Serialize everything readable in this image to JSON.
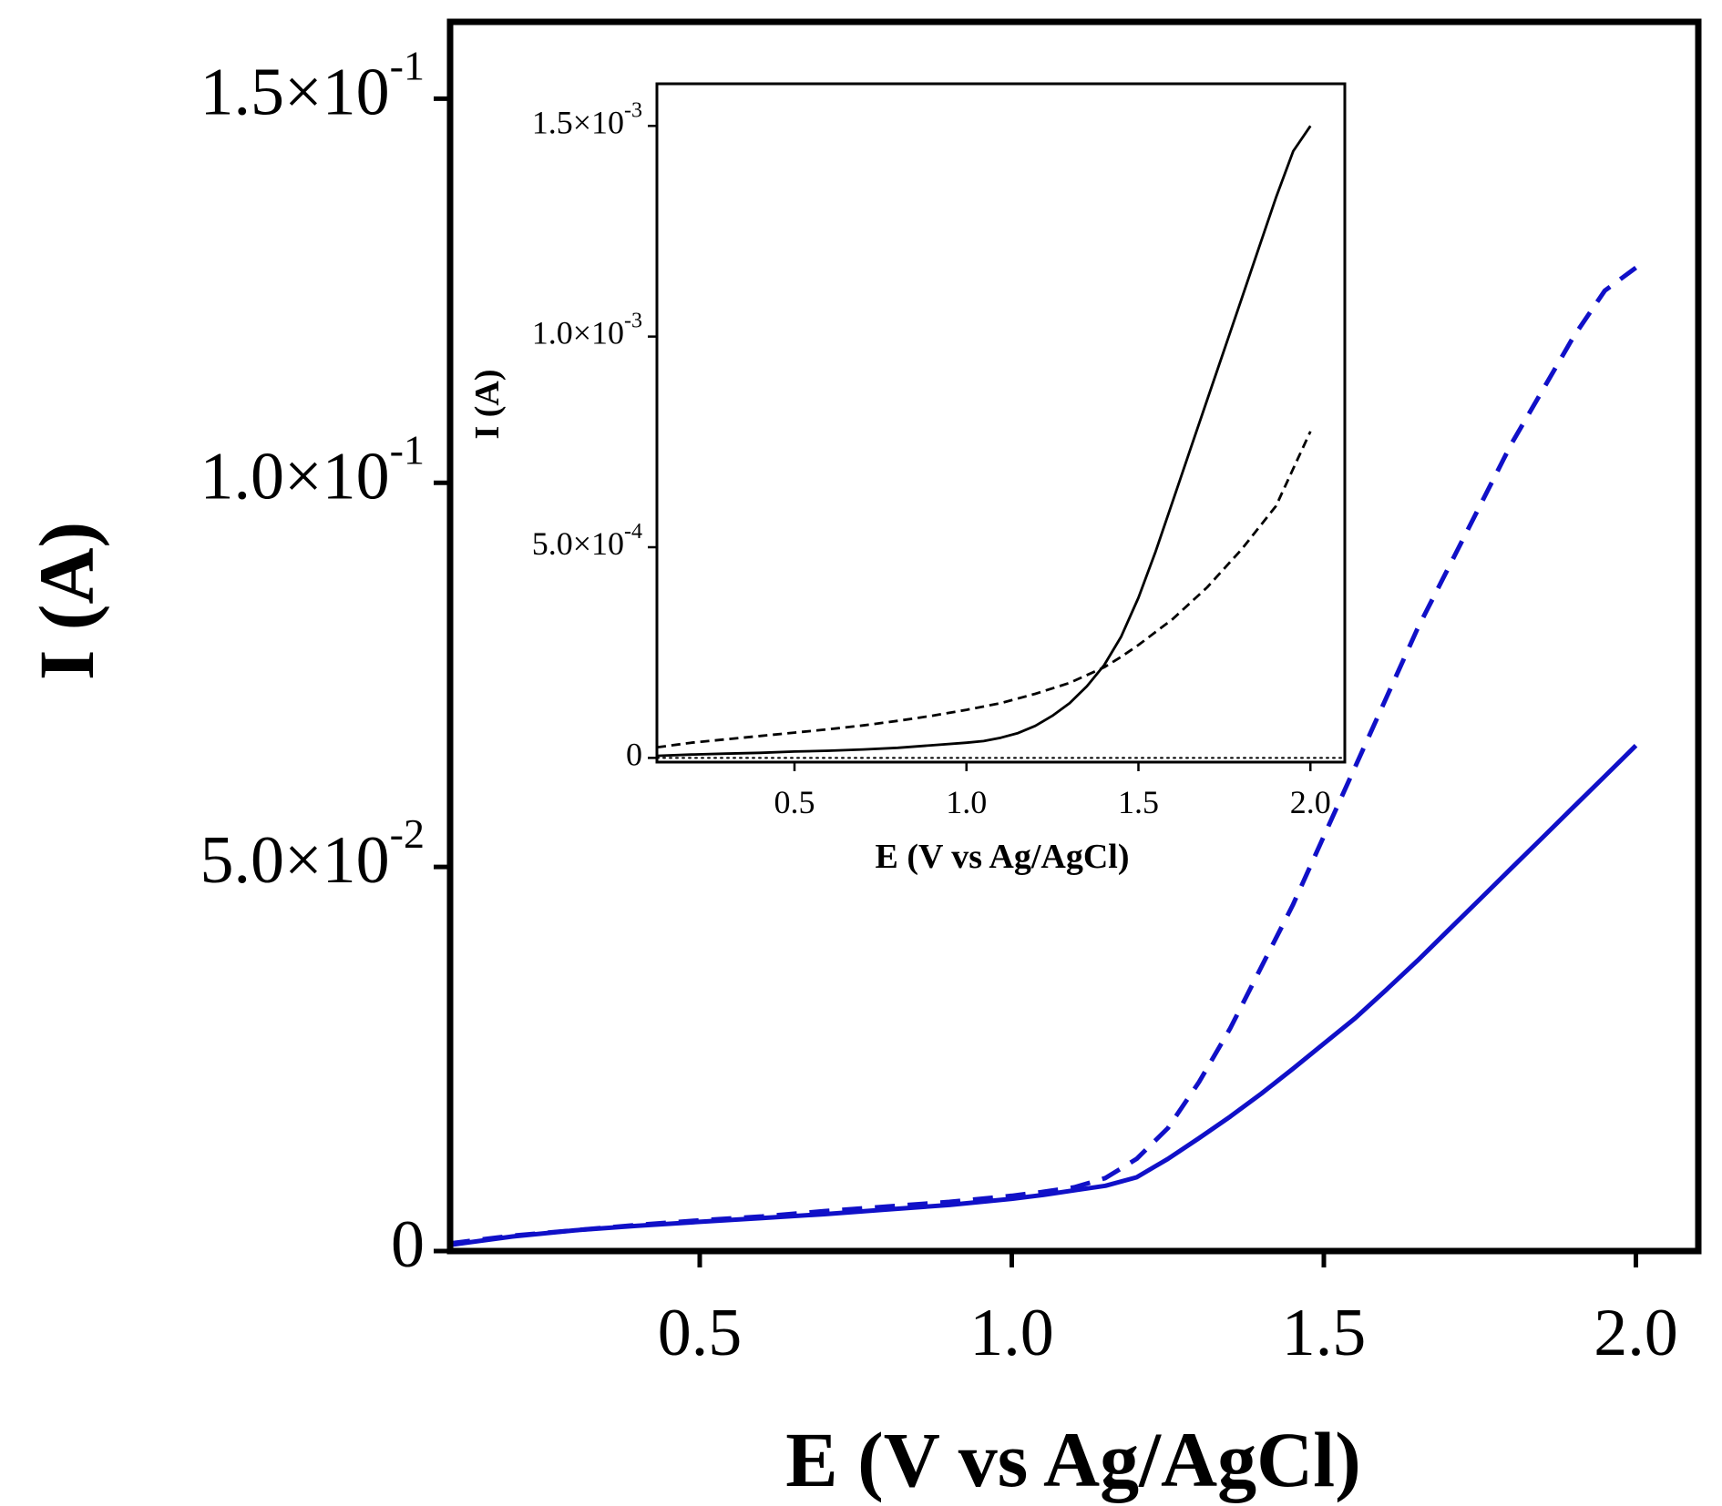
{
  "chart_data": [
    {
      "id": "main",
      "type": "line",
      "title": "",
      "xlabel": "E (V vs Ag/AgCl)",
      "ylabel": "I (A)",
      "xlim": [
        0.1,
        2.1
      ],
      "ylim": [
        0,
        0.16
      ],
      "grid": false,
      "x_ticks": [
        {
          "value": 0.5,
          "label": "0.5"
        },
        {
          "value": 1.0,
          "label": "1.0"
        },
        {
          "value": 1.5,
          "label": "1.5"
        },
        {
          "value": 2.0,
          "label": "2.0"
        }
      ],
      "y_ticks": [
        {
          "value": 0,
          "mantissa": "0",
          "exponent": ""
        },
        {
          "value": 0.05,
          "mantissa": "5.0×10",
          "exponent": "-2"
        },
        {
          "value": 0.1,
          "mantissa": "1.0×10",
          "exponent": "-1"
        },
        {
          "value": 0.15,
          "mantissa": "1.5×10",
          "exponent": "-1"
        }
      ],
      "series": [
        {
          "name": "dashed",
          "style": "dashed",
          "color": "#1010c8",
          "points": [
            [
              0.1,
              0.001
            ],
            [
              0.2,
              0.002
            ],
            [
              0.3,
              0.0027
            ],
            [
              0.4,
              0.0034
            ],
            [
              0.5,
              0.004
            ],
            [
              0.6,
              0.0045
            ],
            [
              0.7,
              0.0052
            ],
            [
              0.8,
              0.0058
            ],
            [
              0.9,
              0.0064
            ],
            [
              1.0,
              0.0072
            ],
            [
              1.05,
              0.0077
            ],
            [
              1.1,
              0.0083
            ],
            [
              1.15,
              0.0095
            ],
            [
              1.2,
              0.012
            ],
            [
              1.25,
              0.016
            ],
            [
              1.3,
              0.022
            ],
            [
              1.35,
              0.029
            ],
            [
              1.4,
              0.037
            ],
            [
              1.45,
              0.045
            ],
            [
              1.5,
              0.054
            ],
            [
              1.55,
              0.063
            ],
            [
              1.6,
              0.072
            ],
            [
              1.65,
              0.081
            ],
            [
              1.7,
              0.089
            ],
            [
              1.75,
              0.097
            ],
            [
              1.8,
              0.105
            ],
            [
              1.85,
              0.112
            ],
            [
              1.9,
              0.119
            ],
            [
              1.95,
              0.125
            ],
            [
              2.0,
              0.128
            ]
          ]
        },
        {
          "name": "solid",
          "style": "solid",
          "color": "#1010c8",
          "points": [
            [
              0.1,
              0.0008
            ],
            [
              0.2,
              0.0019
            ],
            [
              0.3,
              0.0027
            ],
            [
              0.4,
              0.0033
            ],
            [
              0.5,
              0.0038
            ],
            [
              0.6,
              0.0043
            ],
            [
              0.7,
              0.0048
            ],
            [
              0.8,
              0.0054
            ],
            [
              0.9,
              0.006
            ],
            [
              1.0,
              0.0068
            ],
            [
              1.05,
              0.0073
            ],
            [
              1.1,
              0.0079
            ],
            [
              1.15,
              0.0085
            ],
            [
              1.2,
              0.0096
            ],
            [
              1.25,
              0.012
            ],
            [
              1.3,
              0.0147
            ],
            [
              1.35,
              0.0175
            ],
            [
              1.4,
              0.0205
            ],
            [
              1.45,
              0.0237
            ],
            [
              1.5,
              0.027
            ],
            [
              1.55,
              0.0303
            ],
            [
              1.6,
              0.034
            ],
            [
              1.65,
              0.0378
            ],
            [
              1.7,
              0.0418
            ],
            [
              1.75,
              0.0458
            ],
            [
              1.8,
              0.0498
            ],
            [
              1.85,
              0.0538
            ],
            [
              1.9,
              0.0578
            ],
            [
              1.95,
              0.0618
            ],
            [
              2.0,
              0.0658
            ]
          ]
        }
      ]
    },
    {
      "id": "inset",
      "type": "line",
      "title": "",
      "xlabel": "E (V vs Ag/AgCl)",
      "ylabel": "I (A)",
      "xlim": [
        0.1,
        2.1
      ],
      "ylim": [
        -1e-05,
        0.0016
      ],
      "grid": false,
      "x_ticks": [
        {
          "value": 0.5,
          "label": "0.5"
        },
        {
          "value": 1.0,
          "label": "1.0"
        },
        {
          "value": 1.5,
          "label": "1.5"
        },
        {
          "value": 2.0,
          "label": "2.0"
        }
      ],
      "y_ticks": [
        {
          "value": 0,
          "mantissa": "0",
          "exponent": ""
        },
        {
          "value": 0.0005,
          "mantissa": "5.0×10",
          "exponent": "-4"
        },
        {
          "value": 0.001,
          "mantissa": "1.0×10",
          "exponent": "-3"
        },
        {
          "value": 0.0015,
          "mantissa": "1.5×10",
          "exponent": "-3"
        }
      ],
      "series": [
        {
          "name": "solid",
          "style": "solid",
          "color": "#000000",
          "points": [
            [
              0.1,
              5e-06
            ],
            [
              0.2,
              8e-06
            ],
            [
              0.3,
              1e-05
            ],
            [
              0.4,
              1.2e-05
            ],
            [
              0.5,
              1.5e-05
            ],
            [
              0.6,
              1.7e-05
            ],
            [
              0.7,
              2e-05
            ],
            [
              0.8,
              2.4e-05
            ],
            [
              0.9,
              3e-05
            ],
            [
              1.0,
              3.6e-05
            ],
            [
              1.05,
              4e-05
            ],
            [
              1.1,
              4.8e-05
            ],
            [
              1.15,
              5.9e-05
            ],
            [
              1.2,
              7.6e-05
            ],
            [
              1.25,
              0.0001
            ],
            [
              1.3,
              0.00013
            ],
            [
              1.35,
              0.00017
            ],
            [
              1.4,
              0.00022
            ],
            [
              1.45,
              0.000288
            ],
            [
              1.5,
              0.00038
            ],
            [
              1.55,
              0.00049
            ],
            [
              1.6,
              0.00061
            ],
            [
              1.65,
              0.00073
            ],
            [
              1.7,
              0.00085
            ],
            [
              1.75,
              0.00097
            ],
            [
              1.8,
              0.00109
            ],
            [
              1.85,
              0.00121
            ],
            [
              1.9,
              0.00133
            ],
            [
              1.95,
              0.00144
            ],
            [
              2.0,
              0.0015
            ]
          ]
        },
        {
          "name": "dashed",
          "style": "dashed",
          "color": "#000000",
          "points": [
            [
              0.1,
              2.5e-05
            ],
            [
              0.2,
              3.6e-05
            ],
            [
              0.3,
              4.4e-05
            ],
            [
              0.4,
              5.2e-05
            ],
            [
              0.5,
              6e-05
            ],
            [
              0.6,
              6.8e-05
            ],
            [
              0.7,
              7.7e-05
            ],
            [
              0.8,
              8.8e-05
            ],
            [
              0.9,
              0.0001
            ],
            [
              1.0,
              0.000114
            ],
            [
              1.1,
              0.00013
            ],
            [
              1.2,
              0.000152
            ],
            [
              1.3,
              0.000178
            ],
            [
              1.4,
              0.000215
            ],
            [
              1.45,
              0.00024
            ],
            [
              1.5,
              0.000268
            ],
            [
              1.6,
              0.00033
            ],
            [
              1.7,
              0.000405
            ],
            [
              1.8,
              0.000495
            ],
            [
              1.9,
              0.000598
            ],
            [
              2.0,
              0.000775
            ]
          ]
        },
        {
          "name": "baseline",
          "style": "dotted",
          "color": "#000000",
          "points": [
            [
              0.1,
              0.0
            ],
            [
              2.1,
              0.0
            ]
          ]
        }
      ]
    }
  ]
}
